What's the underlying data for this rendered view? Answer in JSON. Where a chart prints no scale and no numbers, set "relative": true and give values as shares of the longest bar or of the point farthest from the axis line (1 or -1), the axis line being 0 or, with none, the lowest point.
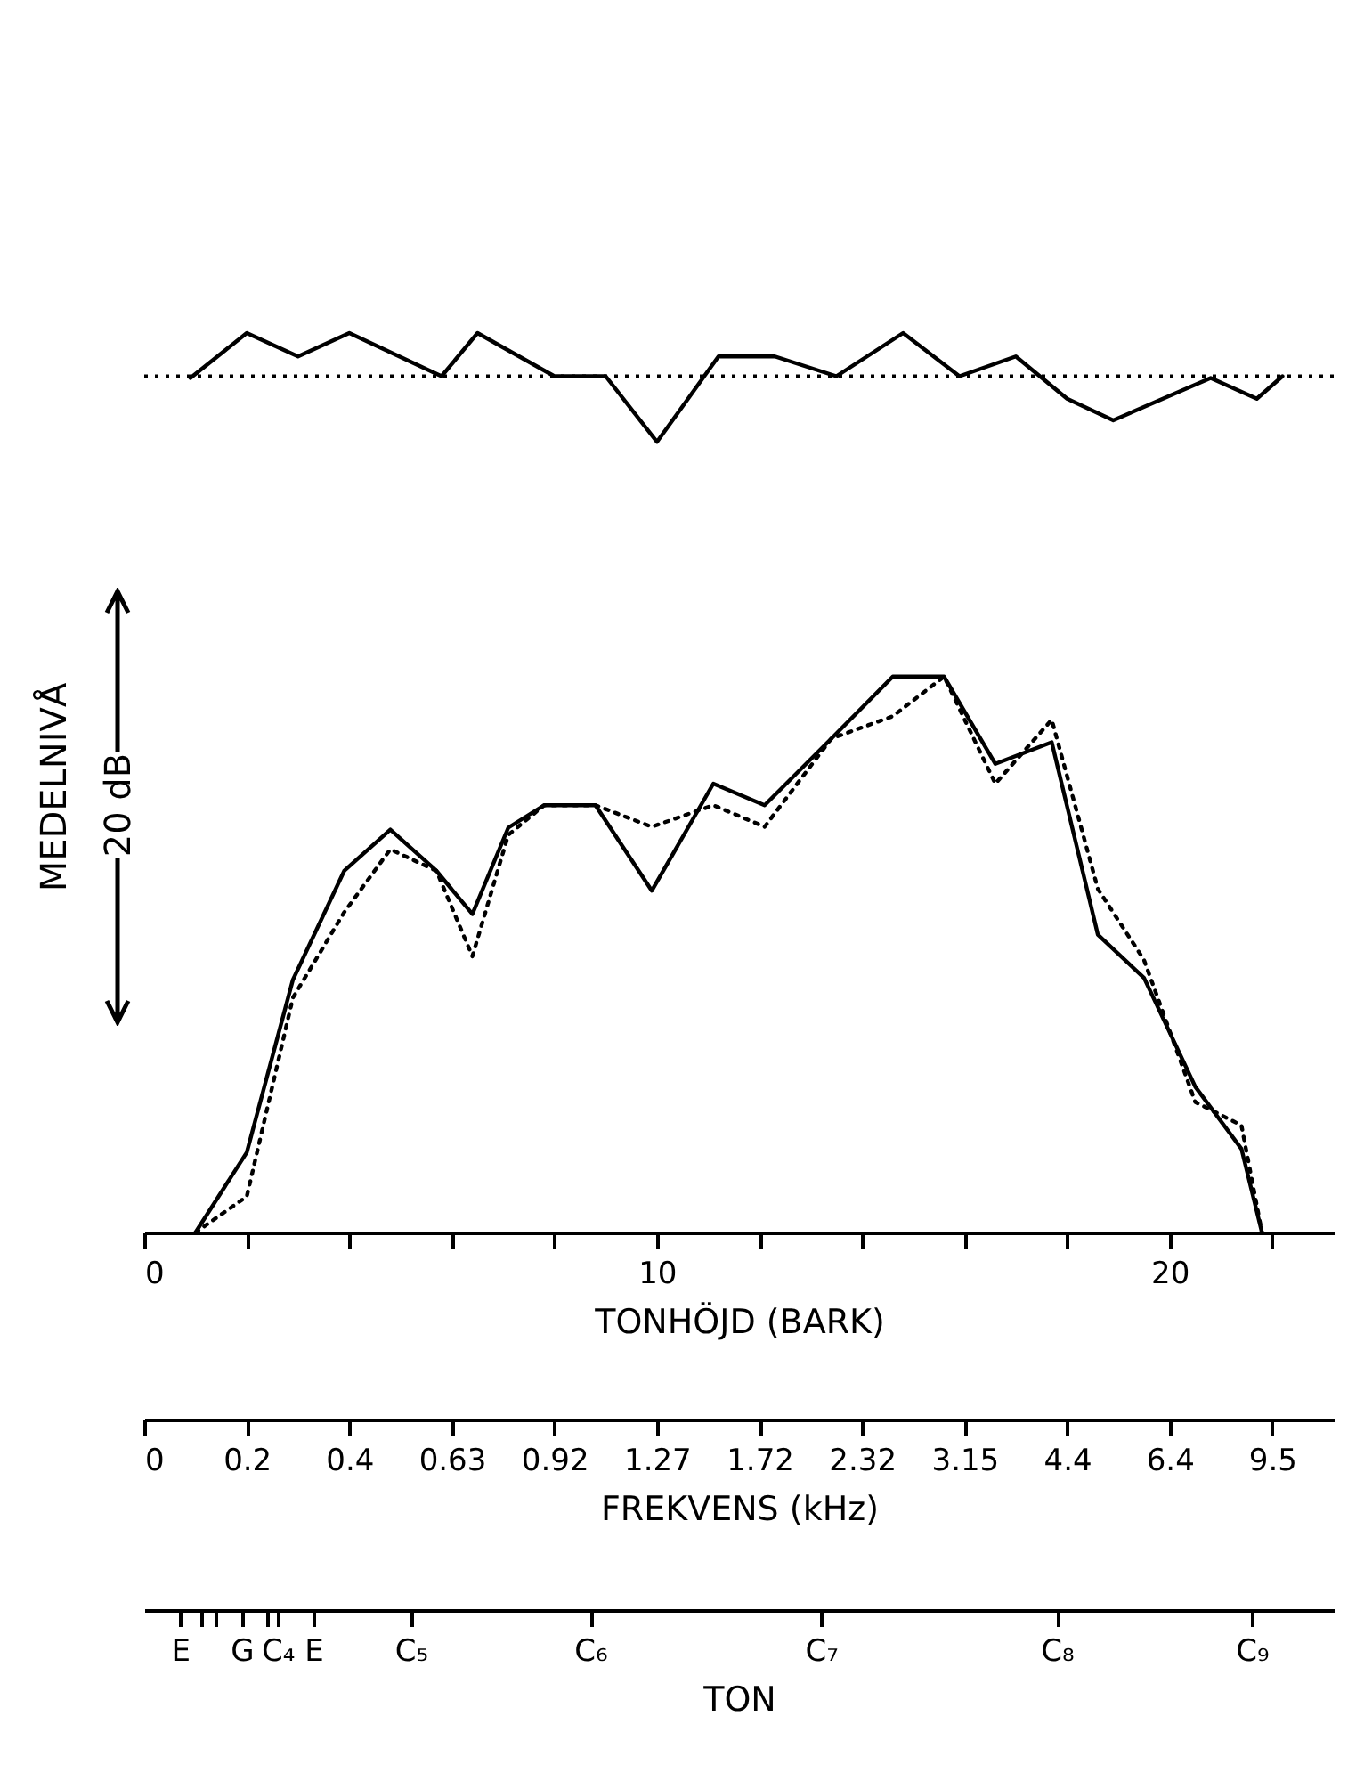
{
  "chart_data": {
    "type": "line",
    "relative": true,
    "xlabel": "TONHÖJD (BARK)",
    "ylabel": "MEDELNIVÅ",
    "x2label": "FREKVENS (kHz)",
    "annotations": [
      "20 dB",
      "0",
      "0.2",
      "0.4",
      "0.63",
      "0.92",
      "1.27",
      "1.72",
      "2.32",
      "3.15",
      "4.4",
      "6.4",
      "9.5",
      "TON",
      "E",
      "G",
      "C₄",
      "E",
      "C₅",
      "C₆",
      "C₇",
      "C₈",
      "C₉"
    ],
    "xlim": [
      0,
      23.2
    ],
    "xticks": [
      0,
      {
        "value": 2,
        "label": null
      },
      {
        "value": 4,
        "label": null
      },
      {
        "value": 6,
        "label": null
      },
      {
        "value": 8,
        "label": null
      },
      10,
      {
        "value": 12,
        "label": null
      },
      {
        "value": 14,
        "label": null
      },
      {
        "value": 16,
        "label": null
      },
      {
        "value": 18,
        "label": null
      },
      20,
      {
        "value": 22,
        "label": null
      }
    ],
    "x": [
      1.0,
      2.0,
      2.9,
      3.9,
      4.8,
      5.7,
      6.4,
      7.1,
      7.8,
      8.8,
      9.9,
      11.1,
      12.1,
      13.4,
      14.6,
      15.6,
      16.6,
      17.7,
      18.6,
      19.5,
      20.5,
      21.4,
      21.8
    ],
    "series": [
      {
        "color": "#000000",
        "line_style": "solid",
        "x": [
          0.9,
          2.0,
          3.0,
          4.0,
          5.8,
          6.5,
          8.0,
          9.0,
          10.0,
          11.2,
          12.3,
          13.5,
          14.8,
          15.9,
          17.0,
          18.0,
          18.9,
          20.8,
          21.7,
          22.2
        ],
        "values": [
          0.95,
          1.0,
          0.974,
          1.0,
          0.952,
          1.0,
          0.952,
          0.952,
          0.879,
          0.974,
          0.974,
          0.952,
          1.0,
          0.952,
          0.974,
          0.927,
          0.903,
          0.95,
          0.927,
          0.952
        ]
      },
      {
        "color": "#000000",
        "line_style": "solid",
        "values": [
          0,
          0.089,
          0.281,
          0.402,
          0.448,
          0.402,
          0.354,
          0.45,
          0.475,
          0.475,
          0.38,
          0.499,
          0.475,
          0.549,
          0.618,
          0.618,
          0.521,
          0.545,
          0.331,
          0.283,
          0.162,
          0.093,
          0
        ]
      },
      {
        "color": "#000000",
        "line_style": "dotted",
        "values": [
          0,
          0.04,
          0.261,
          0.356,
          0.426,
          0.402,
          0.307,
          0.442,
          0.475,
          0.475,
          0.451,
          0.475,
          0.451,
          0.549,
          0.574,
          0.618,
          0.499,
          0.57,
          0.382,
          0.303,
          0.145,
          0.119,
          0
        ]
      }
    ],
    "ref_lines": [
      {
        "axis": "y",
        "value": 0.952,
        "line_style": "dotted"
      }
    ],
    "grid": false
  }
}
